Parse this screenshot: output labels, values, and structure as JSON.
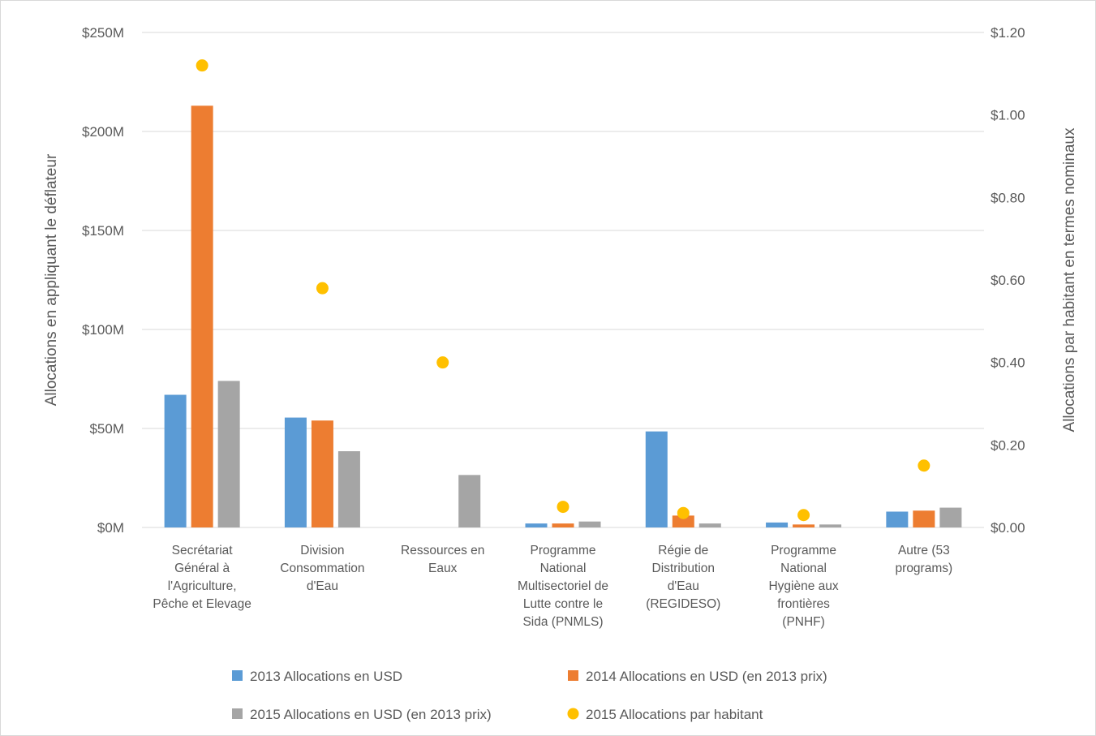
{
  "chart_data": {
    "type": "bar",
    "title": "",
    "categories": [
      [
        "Secrétariat",
        "Général à",
        "l'Agriculture,",
        "Pêche et Elevage"
      ],
      [
        "Division",
        "Consommation",
        "d'Eau"
      ],
      [
        "Ressources en",
        "Eaux"
      ],
      [
        "Programme",
        "National",
        "Multisectoriel de",
        "Lutte contre le",
        "Sida (PNMLS)"
      ],
      [
        "Régie de",
        "Distribution",
        "d'Eau",
        "(REGIDESO)"
      ],
      [
        "Programme",
        "National",
        "Hygiène aux",
        "frontières",
        "(PNHF)"
      ],
      [
        "Autre (53",
        "programs)"
      ]
    ],
    "series": [
      {
        "name": "2013 Allocations en USD",
        "type": "bar",
        "axis": "left",
        "color": "#5B9BD5",
        "values": [
          67,
          55.5,
          0,
          2,
          48.5,
          2.5,
          8
        ]
      },
      {
        "name": "2014 Allocations en USD (en 2013 prix)",
        "type": "bar",
        "axis": "left",
        "color": "#ED7D31",
        "values": [
          213,
          54,
          0,
          2,
          6,
          1.5,
          8.5
        ]
      },
      {
        "name": "2015 Allocations en USD (en 2013 prix)",
        "type": "bar",
        "axis": "left",
        "color": "#A5A5A5",
        "values": [
          74,
          38.5,
          26.5,
          3,
          2,
          1.5,
          10
        ]
      },
      {
        "name": "2015 Allocations par habitant",
        "type": "scatter",
        "axis": "right",
        "color": "#FFC000",
        "values": [
          1.12,
          0.58,
          0.4,
          0.05,
          0.035,
          0.03,
          0.15
        ]
      }
    ],
    "y_left": {
      "label": "Allocations en appliquant le déflateur",
      "ylim": [
        0,
        250
      ],
      "ticks": [
        0,
        50,
        100,
        150,
        200,
        250
      ],
      "tick_labels": [
        "$0M",
        "$50M",
        "$100M",
        "$150M",
        "$200M",
        "$250M"
      ]
    },
    "y_right": {
      "label": "Allocations par habitant en termes nominaux",
      "ylim": [
        0,
        1.2
      ],
      "ticks": [
        0,
        0.2,
        0.4,
        0.6,
        0.8,
        1.0,
        1.2
      ],
      "tick_labels": [
        "$0.00",
        "$0.20",
        "$0.40",
        "$0.60",
        "$0.80",
        "$1.00",
        "$1.20"
      ]
    },
    "grid": true,
    "legend_position": "bottom"
  }
}
